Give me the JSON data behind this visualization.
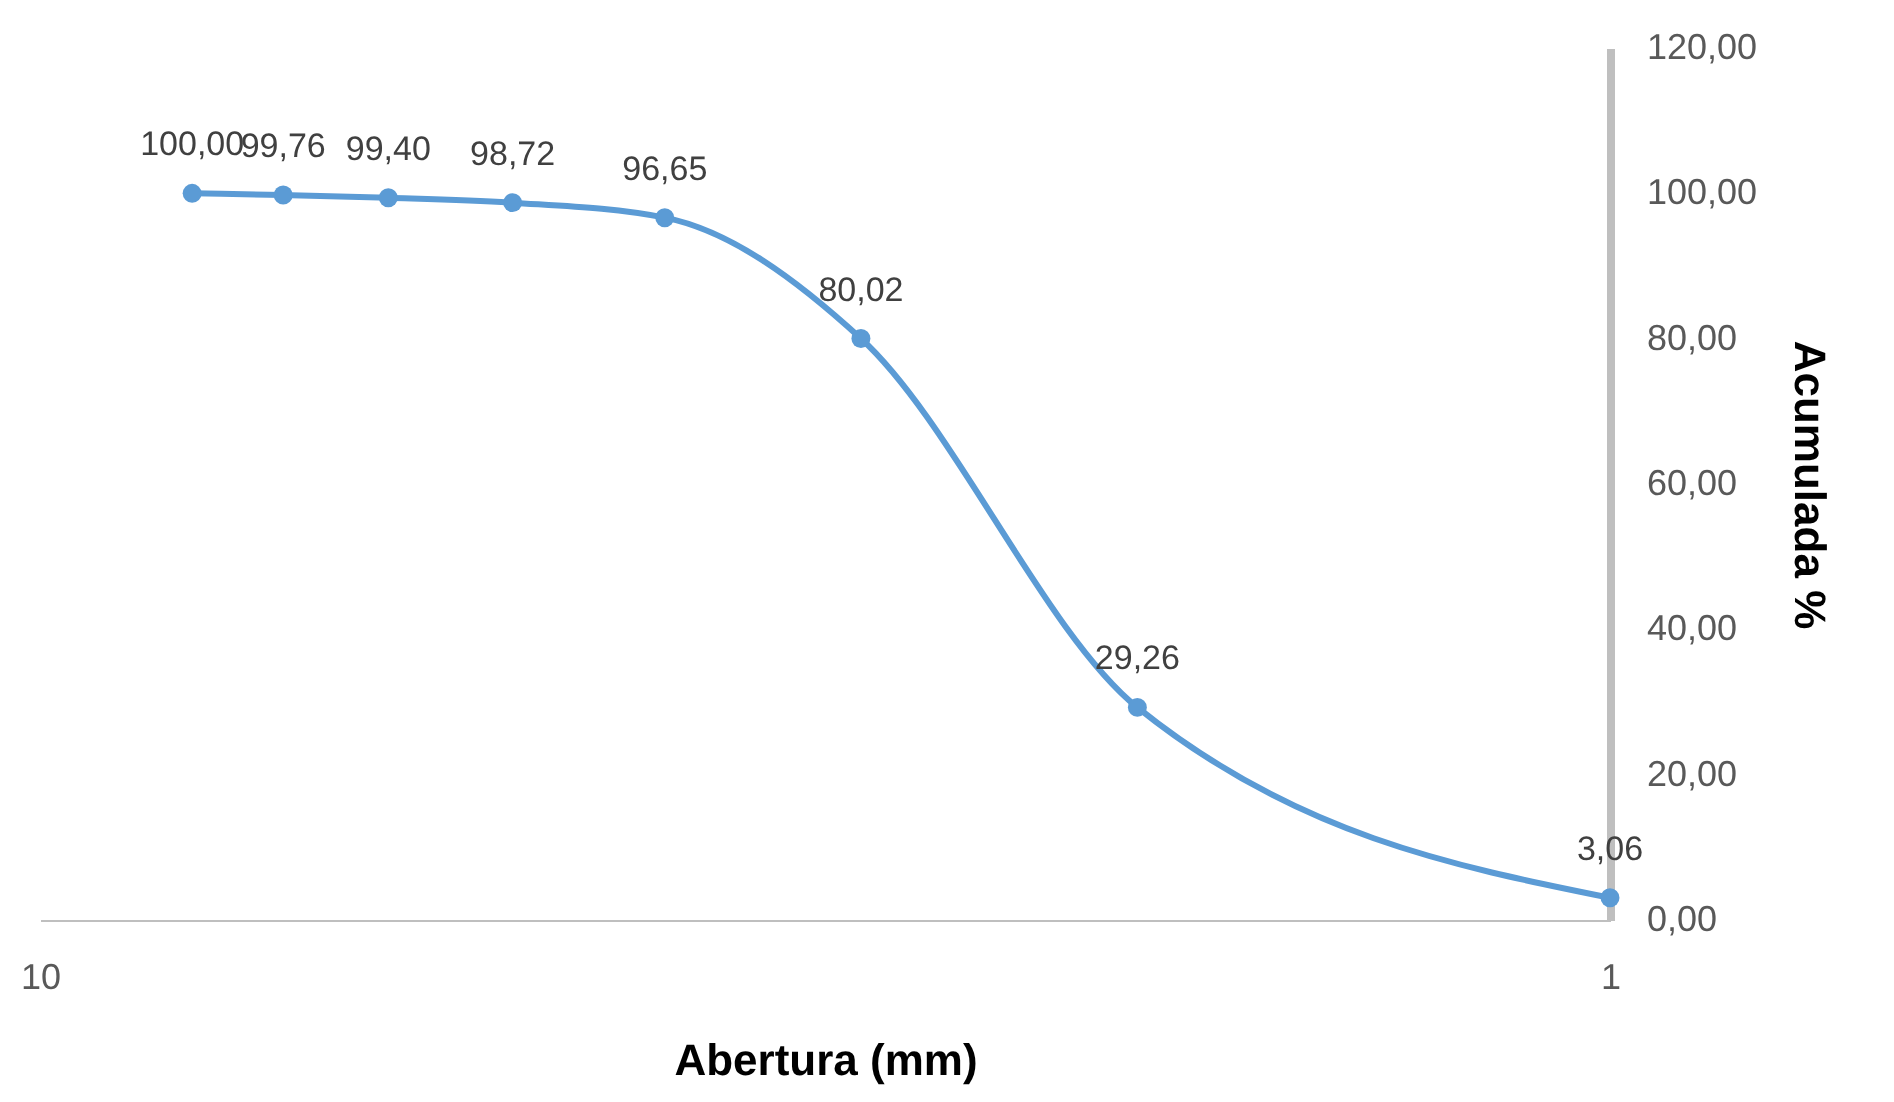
{
  "chart_data": {
    "type": "line",
    "xlabel": "Abertura (mm)",
    "ylabel": "Acumulada %",
    "x": [
      8,
      7,
      6,
      5,
      4,
      3,
      2,
      1
    ],
    "series": [
      {
        "color": "#5b9bd5",
        "values": [
          100.0,
          99.76,
          99.4,
          98.72,
          96.65,
          80.02,
          29.26,
          3.06
        ],
        "value_labels": [
          "100,00",
          "99,76",
          "99,40",
          "98,72",
          "96,65",
          "80,02",
          "29,26",
          "3,06"
        ]
      }
    ],
    "log": "x",
    "xlim": [
      10,
      1
    ],
    "xticks": [
      10,
      1
    ],
    "ylim": [
      0,
      120
    ],
    "yticks": [
      {
        "value": 0,
        "label": "0,00"
      },
      {
        "value": 20,
        "label": "20,00"
      },
      {
        "value": 40,
        "label": "40,00"
      },
      {
        "value": 60,
        "label": "60,00"
      },
      {
        "value": 80,
        "label": "80,00"
      },
      {
        "value": 100,
        "label": "100,00"
      },
      {
        "value": 120,
        "label": "120,00"
      }
    ],
    "grid": false,
    "marker": "circle",
    "line_style": "solid"
  }
}
